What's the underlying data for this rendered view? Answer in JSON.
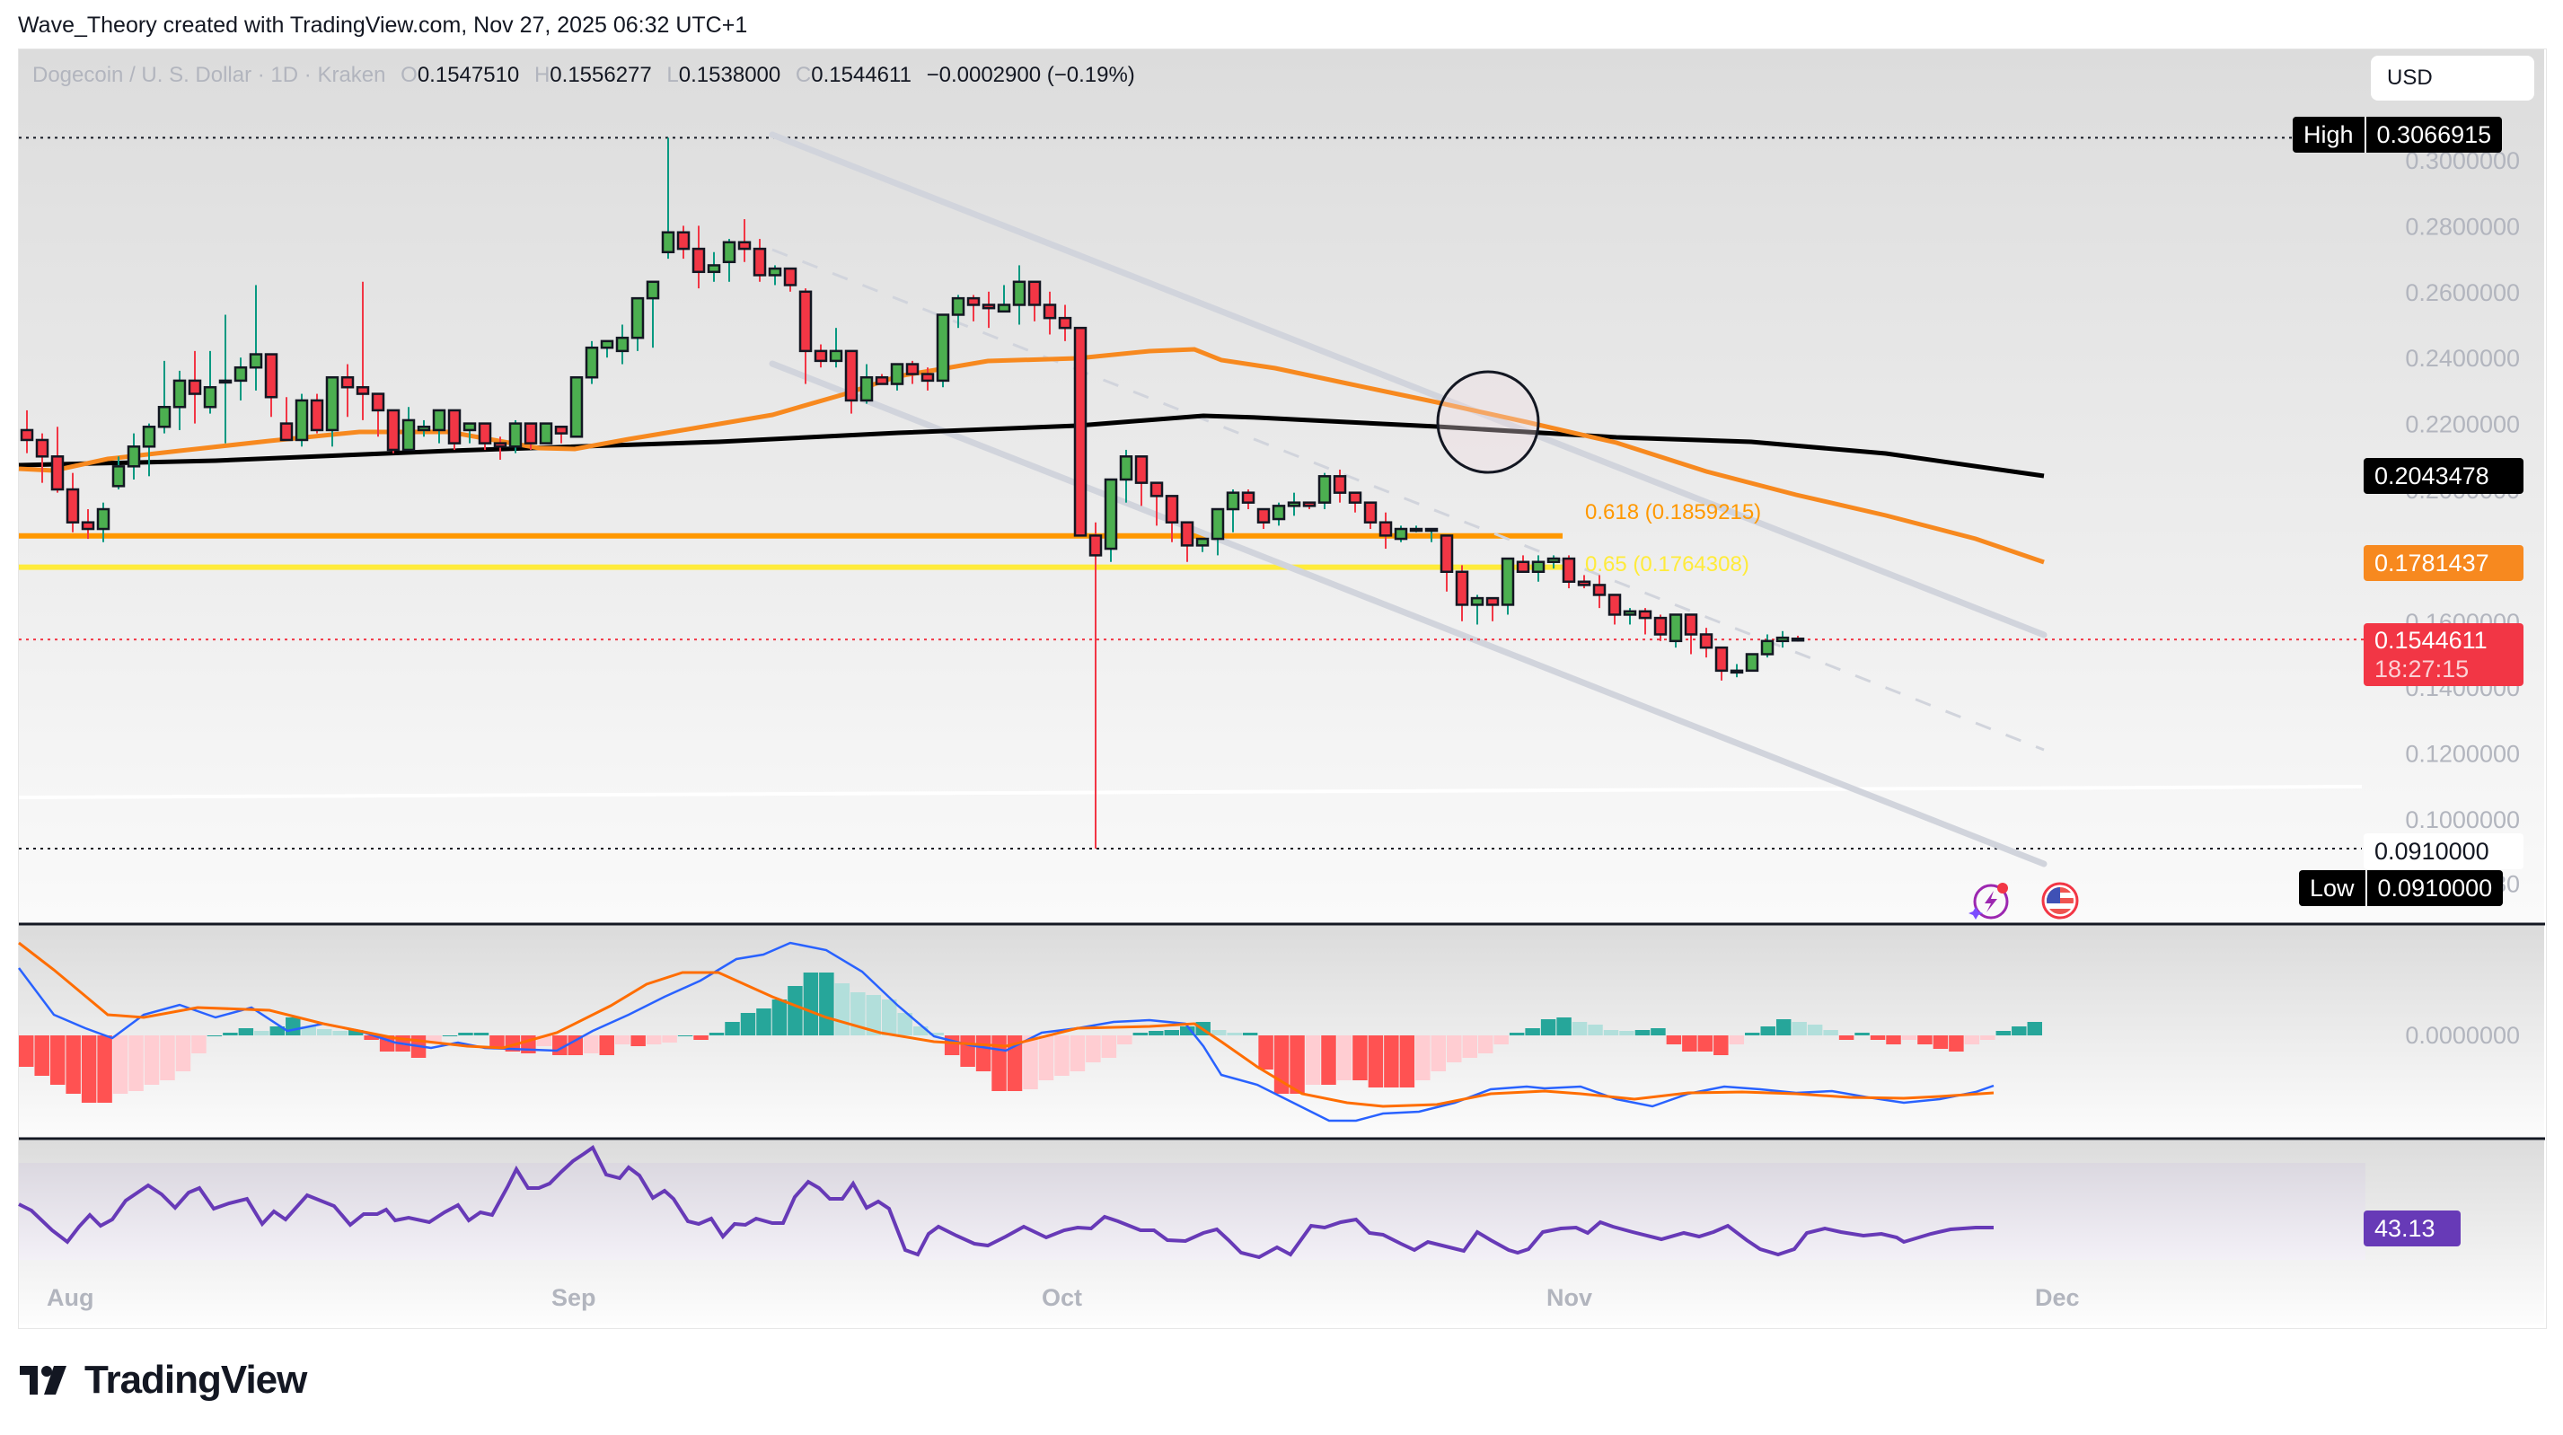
{
  "credit": "Wave_Theory created with TradingView.com, Nov 27, 2025 06:32 UTC+1",
  "legend": {
    "symbol": "Dogecoin / U. S. Dollar · 1D · Kraken",
    "o_label": "O",
    "o": "0.1547510",
    "h_label": "H",
    "h": "0.1556277",
    "l_label": "L",
    "l": "0.1538000",
    "c_label": "C",
    "c": "0.1544611",
    "change": "−0.0002900 (−0.19%)"
  },
  "currency": "USD",
  "price_axis": {
    "ticks": [
      "0.3000000",
      "0.2800000",
      "0.2600000",
      "0.2400000",
      "0.2200000",
      "0.2000000",
      "0.1600000",
      "0.1400000",
      "0.1200000",
      "0.1000000",
      "0.0804980"
    ],
    "high_label": "High",
    "high_value": "0.3066915",
    "low_label": "Low",
    "low_value": "0.0910000",
    "low_line_value": "0.0910000",
    "ma200_value": "0.2043478",
    "ma50_value": "0.1781437",
    "last_price": "0.1544611",
    "countdown": "18:27:15",
    "macd_zero": "0.0000000",
    "rsi_value": "43.13"
  },
  "fib_labels": {
    "f618": "0.618 (0.1859215)",
    "f65": "0.65 (0.1764308)"
  },
  "time_axis": [
    "Aug",
    "Sep",
    "Oct",
    "Nov",
    "Dec"
  ],
  "brand": "TradingView",
  "colors": {
    "up": "#4caf50",
    "down": "#f23645",
    "up_wick": "#089981",
    "down_wick": "#f23645",
    "ma50": "#f7891f",
    "ma200": "#000000",
    "fib618": "#ff9800",
    "fib65": "#ffeb3b",
    "channel": "#d1d4dc",
    "macd": "#2962ff",
    "signal": "#ff6d00",
    "rsi": "#673ab7",
    "last": "#f23645"
  },
  "chart_data": {
    "type": "candlestick",
    "title": "Dogecoin / U. S. Dollar · 1D · Kraken",
    "ylim": [
      0.0805,
      0.315
    ],
    "x_ticks": [
      "Aug",
      "Sep",
      "Oct",
      "Nov",
      "Dec"
    ],
    "ohlc": [
      [
        0.218,
        0.224,
        0.211,
        0.215
      ],
      [
        0.215,
        0.217,
        0.202,
        0.21
      ],
      [
        0.21,
        0.219,
        0.199,
        0.2
      ],
      [
        0.2,
        0.205,
        0.187,
        0.19
      ],
      [
        0.19,
        0.194,
        0.185,
        0.188
      ],
      [
        0.188,
        0.196,
        0.184,
        0.194
      ],
      [
        0.201,
        0.21,
        0.2,
        0.207
      ],
      [
        0.207,
        0.217,
        0.203,
        0.213
      ],
      [
        0.213,
        0.22,
        0.204,
        0.219
      ],
      [
        0.219,
        0.239,
        0.217,
        0.225
      ],
      [
        0.225,
        0.236,
        0.218,
        0.233
      ],
      [
        0.233,
        0.242,
        0.22,
        0.229
      ],
      [
        0.225,
        0.242,
        0.223,
        0.231
      ],
      [
        0.233,
        0.253,
        0.214,
        0.233
      ],
      [
        0.233,
        0.24,
        0.227,
        0.237
      ],
      [
        0.237,
        0.262,
        0.23,
        0.241
      ],
      [
        0.241,
        0.239,
        0.222,
        0.228
      ],
      [
        0.22,
        0.228,
        0.215,
        0.215
      ],
      [
        0.215,
        0.229,
        0.213,
        0.227
      ],
      [
        0.227,
        0.229,
        0.217,
        0.218
      ],
      [
        0.218,
        0.234,
        0.213,
        0.234
      ],
      [
        0.234,
        0.238,
        0.222,
        0.231
      ],
      [
        0.231,
        0.263,
        0.221,
        0.229
      ],
      [
        0.229,
        0.227,
        0.216,
        0.224
      ],
      [
        0.224,
        0.224,
        0.211,
        0.212
      ],
      [
        0.212,
        0.225,
        0.213,
        0.221
      ],
      [
        0.218,
        0.221,
        0.216,
        0.219
      ],
      [
        0.218,
        0.224,
        0.214,
        0.224
      ],
      [
        0.224,
        0.224,
        0.212,
        0.214
      ],
      [
        0.218,
        0.217,
        0.214,
        0.22
      ],
      [
        0.22,
        0.218,
        0.212,
        0.214
      ],
      [
        0.214,
        0.216,
        0.209,
        0.213
      ],
      [
        0.213,
        0.221,
        0.211,
        0.22
      ],
      [
        0.22,
        0.219,
        0.212,
        0.214
      ],
      [
        0.214,
        0.22,
        0.215,
        0.22
      ],
      [
        0.219,
        0.218,
        0.214,
        0.217
      ],
      [
        0.216,
        0.234,
        0.216,
        0.234
      ],
      [
        0.234,
        0.245,
        0.232,
        0.243
      ],
      [
        0.243,
        0.242,
        0.24,
        0.245
      ],
      [
        0.242,
        0.25,
        0.238,
        0.246
      ],
      [
        0.246,
        0.253,
        0.242,
        0.258
      ],
      [
        0.258,
        0.263,
        0.243,
        0.263
      ],
      [
        0.272,
        0.3067,
        0.27,
        0.278
      ],
      [
        0.278,
        0.28,
        0.27,
        0.273
      ],
      [
        0.273,
        0.28,
        0.261,
        0.266
      ],
      [
        0.266,
        0.272,
        0.263,
        0.268
      ],
      [
        0.269,
        0.276,
        0.263,
        0.275
      ],
      [
        0.275,
        0.282,
        0.269,
        0.273
      ],
      [
        0.273,
        0.276,
        0.263,
        0.265
      ],
      [
        0.265,
        0.268,
        0.262,
        0.267
      ],
      [
        0.267,
        0.266,
        0.26,
        0.262
      ],
      [
        0.26,
        0.261,
        0.232,
        0.242
      ],
      [
        0.242,
        0.244,
        0.237,
        0.239
      ],
      [
        0.239,
        0.249,
        0.237,
        0.242
      ],
      [
        0.242,
        0.242,
        0.223,
        0.227
      ],
      [
        0.227,
        0.238,
        0.226,
        0.234
      ],
      [
        0.234,
        0.235,
        0.232,
        0.232
      ],
      [
        0.232,
        0.238,
        0.23,
        0.238
      ],
      [
        0.238,
        0.239,
        0.232,
        0.235
      ],
      [
        0.235,
        0.237,
        0.23,
        0.233
      ],
      [
        0.233,
        0.252,
        0.231,
        0.253
      ],
      [
        0.253,
        0.259,
        0.249,
        0.258
      ],
      [
        0.258,
        0.259,
        0.251,
        0.256
      ],
      [
        0.256,
        0.26,
        0.249,
        0.255
      ],
      [
        0.254,
        0.262,
        0.254,
        0.256
      ],
      [
        0.256,
        0.268,
        0.25,
        0.263
      ],
      [
        0.263,
        0.263,
        0.251,
        0.256
      ],
      [
        0.256,
        0.26,
        0.247,
        0.252
      ],
      [
        0.252,
        0.256,
        0.245,
        0.249
      ],
      [
        0.249,
        0.246,
        0.19,
        0.186
      ],
      [
        0.186,
        0.19,
        0.091,
        0.18
      ],
      [
        0.182,
        0.202,
        0.178,
        0.203
      ],
      [
        0.203,
        0.212,
        0.196,
        0.21
      ],
      [
        0.21,
        0.209,
        0.195,
        0.202
      ],
      [
        0.202,
        0.201,
        0.189,
        0.198
      ],
      [
        0.198,
        0.195,
        0.184,
        0.19
      ],
      [
        0.19,
        0.19,
        0.178,
        0.183
      ],
      [
        0.183,
        0.185,
        0.181,
        0.185
      ],
      [
        0.185,
        0.194,
        0.18,
        0.194
      ],
      [
        0.194,
        0.2,
        0.187,
        0.199
      ],
      [
        0.199,
        0.2,
        0.194,
        0.196
      ],
      [
        0.194,
        0.192,
        0.188,
        0.19
      ],
      [
        0.191,
        0.196,
        0.189,
        0.195
      ],
      [
        0.195,
        0.199,
        0.192,
        0.196
      ],
      [
        0.196,
        0.196,
        0.194,
        0.195
      ],
      [
        0.196,
        0.205,
        0.194,
        0.204
      ],
      [
        0.204,
        0.206,
        0.196,
        0.199
      ],
      [
        0.199,
        0.199,
        0.193,
        0.196
      ],
      [
        0.196,
        0.196,
        0.188,
        0.19
      ],
      [
        0.19,
        0.193,
        0.182,
        0.186
      ],
      [
        0.185,
        0.189,
        0.184,
        0.188
      ],
      [
        0.188,
        0.189,
        0.187,
        0.188
      ],
      [
        0.188,
        0.188,
        0.184,
        0.188
      ],
      [
        0.186,
        0.186,
        0.169,
        0.175
      ],
      [
        0.175,
        0.177,
        0.16,
        0.165
      ],
      [
        0.165,
        0.168,
        0.159,
        0.167
      ],
      [
        0.167,
        0.165,
        0.16,
        0.165
      ],
      [
        0.165,
        0.178,
        0.162,
        0.179
      ],
      [
        0.178,
        0.18,
        0.176,
        0.175
      ],
      [
        0.175,
        0.18,
        0.172,
        0.178
      ],
      [
        0.178,
        0.18,
        0.176,
        0.179
      ],
      [
        0.179,
        0.18,
        0.17,
        0.172
      ],
      [
        0.172,
        0.174,
        0.17,
        0.171
      ],
      [
        0.171,
        0.174,
        0.164,
        0.168
      ],
      [
        0.168,
        0.167,
        0.159,
        0.162
      ],
      [
        0.162,
        0.164,
        0.159,
        0.163
      ],
      [
        0.163,
        0.164,
        0.156,
        0.161
      ],
      [
        0.161,
        0.162,
        0.154,
        0.156
      ],
      [
        0.154,
        0.162,
        0.152,
        0.162
      ],
      [
        0.162,
        0.162,
        0.15,
        0.156
      ],
      [
        0.156,
        0.158,
        0.149,
        0.152
      ],
      [
        0.152,
        0.151,
        0.142,
        0.145
      ],
      [
        0.145,
        0.147,
        0.143,
        0.145
      ],
      [
        0.145,
        0.15,
        0.145,
        0.15
      ],
      [
        0.15,
        0.156,
        0.149,
        0.154
      ],
      [
        0.154,
        0.157,
        0.152,
        0.155
      ],
      [
        0.1547,
        0.1556,
        0.1538,
        0.1545
      ]
    ],
    "indicators": [
      "MA50 (orange)",
      "MA200 (black)",
      "MACD",
      "RSI 43.13"
    ]
  }
}
